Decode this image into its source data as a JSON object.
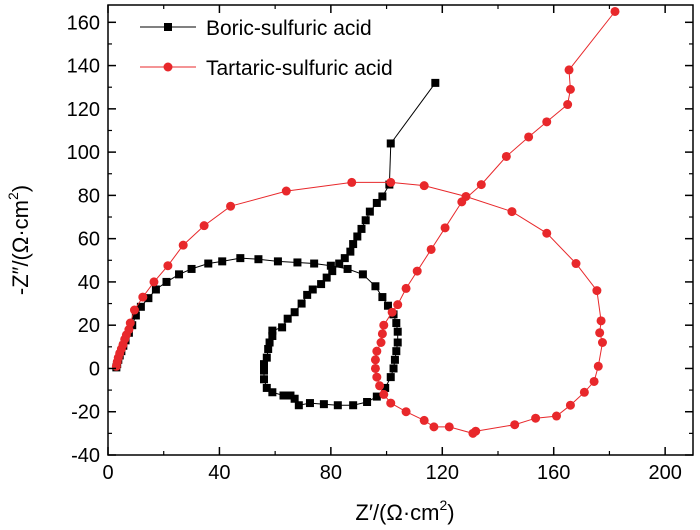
{
  "chart_data": {
    "type": "scatter",
    "title": "",
    "xlabel": {
      "main": "Z′/(Ω·cm",
      "sup": "2",
      "tail": ")"
    },
    "ylabel": {
      "main": "-Z″/(Ω·cm",
      "sup": "2",
      "tail": ")"
    },
    "xlim": [
      0,
      210
    ],
    "ylim": [
      -40,
      168
    ],
    "xticks": [
      0,
      40,
      80,
      120,
      160,
      200
    ],
    "yticks": [
      -40,
      -20,
      0,
      20,
      40,
      60,
      80,
      100,
      120,
      140,
      160
    ],
    "legend_position": "top-left",
    "grid": false,
    "series": [
      {
        "name": "Boric-sulfuric acid",
        "color": "#000000",
        "marker": "square",
        "points": [
          [
            3,
            0.5
          ],
          [
            3.3,
            2
          ],
          [
            3.7,
            4
          ],
          [
            4.2,
            6
          ],
          [
            4.8,
            8
          ],
          [
            5.5,
            10.5
          ],
          [
            6.3,
            13
          ],
          [
            7.5,
            16.5
          ],
          [
            8.7,
            20
          ],
          [
            10,
            24.5
          ],
          [
            11.8,
            28.5
          ],
          [
            14.5,
            32.5
          ],
          [
            17.2,
            36.5
          ],
          [
            21,
            40
          ],
          [
            25.5,
            43.5
          ],
          [
            30,
            46
          ],
          [
            36,
            48.5
          ],
          [
            41,
            49.5
          ],
          [
            47.5,
            51
          ],
          [
            54,
            50.5
          ],
          [
            61,
            49.5
          ],
          [
            68,
            49
          ],
          [
            74,
            48.5
          ],
          [
            80,
            47.5
          ],
          [
            86,
            46
          ],
          [
            91.5,
            43.5
          ],
          [
            96,
            38
          ],
          [
            98.5,
            33
          ],
          [
            100.5,
            29
          ],
          [
            102.5,
            25
          ],
          [
            103.5,
            21
          ],
          [
            104,
            17
          ],
          [
            104,
            12
          ],
          [
            103.5,
            8
          ],
          [
            103,
            4
          ],
          [
            102.5,
            0
          ],
          [
            101.5,
            -4
          ],
          [
            99.5,
            -9
          ],
          [
            96.5,
            -13
          ],
          [
            93,
            -15.5
          ],
          [
            88,
            -17
          ],
          [
            82.5,
            -17
          ],
          [
            77.5,
            -16.5
          ],
          [
            72.5,
            -16
          ],
          [
            68.5,
            -17
          ],
          [
            67,
            -14
          ],
          [
            65.5,
            -12.5
          ],
          [
            63,
            -12.5
          ],
          [
            59,
            -11
          ],
          [
            57,
            -9
          ],
          [
            56,
            -5
          ],
          [
            56,
            -1
          ],
          [
            56,
            2
          ],
          [
            57,
            5
          ],
          [
            57.5,
            9
          ],
          [
            58,
            12
          ],
          [
            59,
            15
          ],
          [
            59,
            17.5
          ],
          [
            62.5,
            19
          ],
          [
            64.5,
            23
          ],
          [
            67,
            26
          ],
          [
            69.5,
            30
          ],
          [
            71.5,
            34
          ],
          [
            73.5,
            36.5
          ],
          [
            76.5,
            39
          ],
          [
            78.5,
            42
          ],
          [
            80.5,
            45
          ],
          [
            83,
            48.5
          ],
          [
            85,
            51
          ],
          [
            87,
            54
          ],
          [
            88,
            57.5
          ],
          [
            89.5,
            61
          ],
          [
            91,
            64.5
          ],
          [
            92.5,
            68.5
          ],
          [
            94,
            72.5
          ],
          [
            96.5,
            76.5
          ],
          [
            98.5,
            79.5
          ],
          [
            101,
            85
          ],
          [
            101.5,
            104
          ],
          [
            117.5,
            132
          ]
        ]
      },
      {
        "name": "Tartaric-sulfuric acid",
        "color": "#e8282b",
        "marker": "circle",
        "points": [
          [
            3,
            1
          ],
          [
            3.3,
            3
          ],
          [
            3.7,
            5
          ],
          [
            4.2,
            7
          ],
          [
            4.8,
            9
          ],
          [
            5.4,
            11
          ],
          [
            6,
            13.5
          ],
          [
            6.6,
            15.5
          ],
          [
            7.5,
            18
          ],
          [
            8,
            21
          ],
          [
            9.5,
            27
          ],
          [
            12.5,
            33
          ],
          [
            16.5,
            40
          ],
          [
            21.5,
            47.5
          ],
          [
            27,
            57
          ],
          [
            34.5,
            66
          ],
          [
            44,
            75
          ],
          [
            64,
            82
          ],
          [
            87.5,
            86
          ],
          [
            101.5,
            86
          ],
          [
            113.5,
            84.5
          ],
          [
            128.5,
            79.5
          ],
          [
            145,
            72.5
          ],
          [
            157.5,
            62.5
          ],
          [
            168,
            48.5
          ],
          [
            175.5,
            36
          ],
          [
            177,
            22
          ],
          [
            176.5,
            16.5
          ],
          [
            177.5,
            12
          ],
          [
            176,
            1
          ],
          [
            174.5,
            -6
          ],
          [
            171,
            -11
          ],
          [
            166,
            -17
          ],
          [
            161,
            -22
          ],
          [
            153.5,
            -23
          ],
          [
            146,
            -26
          ],
          [
            132,
            -29
          ],
          [
            131,
            -30
          ],
          [
            122.5,
            -27
          ],
          [
            117,
            -27
          ],
          [
            113.5,
            -24
          ],
          [
            107,
            -20
          ],
          [
            101.5,
            -16
          ],
          [
            99,
            -12
          ],
          [
            97.5,
            -8
          ],
          [
            96.5,
            -4
          ],
          [
            96,
            0
          ],
          [
            96,
            4
          ],
          [
            96.5,
            8
          ],
          [
            98,
            12
          ],
          [
            98.5,
            16
          ],
          [
            99,
            20
          ],
          [
            102,
            26
          ],
          [
            104,
            29.5
          ],
          [
            107,
            37
          ],
          [
            111,
            45
          ],
          [
            116,
            55
          ],
          [
            121,
            65
          ],
          [
            127,
            77
          ],
          [
            134,
            85
          ],
          [
            143,
            98
          ],
          [
            151,
            107
          ],
          [
            157.5,
            114
          ],
          [
            165,
            122
          ],
          [
            166,
            129
          ],
          [
            165.5,
            138
          ],
          [
            182,
            165
          ]
        ]
      }
    ]
  }
}
